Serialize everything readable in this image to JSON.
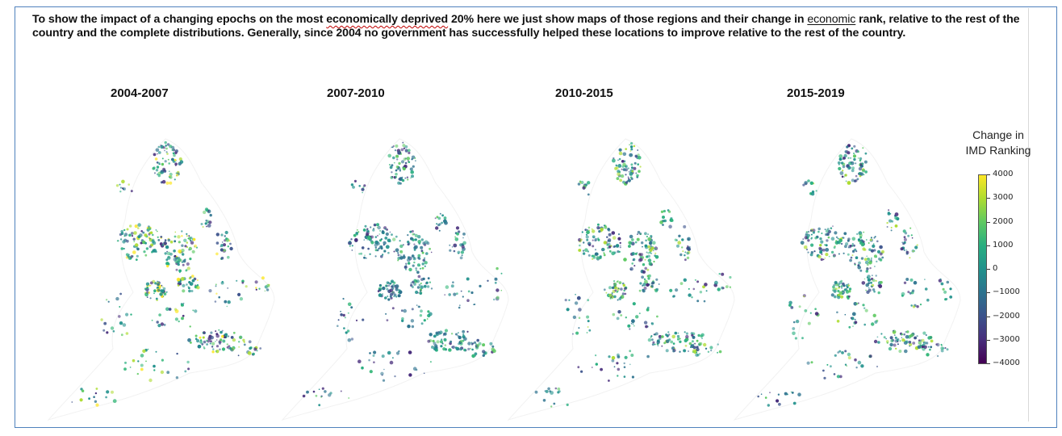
{
  "intro": {
    "part1": "To show the impact of a changing epochs on the most ",
    "flagged_phrase": "economically deprived",
    "part2": " 20% here we just show maps of those regions and their change in ",
    "underlined_word": "economic",
    "part3": " rank, relative to the rest of the country and the complete distributions. Generally, since 2004 no government has successfully helped these locations to improve relative to the rest of the country."
  },
  "panels": [
    {
      "title": "2004-2007",
      "palette": [
        "#21918c",
        "#21918c",
        "#28ae80",
        "#35b779",
        "#5ec962",
        "#2c728e",
        "#3b528b",
        "#fde725",
        "#addc30",
        "#472d7b"
      ]
    },
    {
      "title": "2007-2010",
      "palette": [
        "#21918c",
        "#2c728e",
        "#2c728e",
        "#28ae80",
        "#3b528b",
        "#21918c",
        "#5ec962",
        "#472d7b",
        "#35b779",
        "#2c728e"
      ]
    },
    {
      "title": "2010-2015",
      "palette": [
        "#21918c",
        "#2c728e",
        "#28ae80",
        "#3b528b",
        "#5ec962",
        "#21918c",
        "#472d7b",
        "#35b779",
        "#addc30",
        "#2c728e"
      ]
    },
    {
      "title": "2015-2019",
      "palette": [
        "#21918c",
        "#2c728e",
        "#3b528b",
        "#28ae80",
        "#21918c",
        "#5ec962",
        "#2c728e",
        "#35b779",
        "#472d7b",
        "#addc30"
      ]
    }
  ],
  "legend": {
    "title_line1": "Change in",
    "title_line2": "IMD Ranking",
    "ticks": [
      "4000",
      "3000",
      "2000",
      "1000",
      "0",
      "−1000",
      "−2000",
      "−3000",
      "−4000"
    ],
    "colors": [
      "#fde725",
      "#addc30",
      "#5ec962",
      "#28ae80",
      "#21918c",
      "#2c728e",
      "#3b528b",
      "#472d7b",
      "#440154"
    ]
  }
}
